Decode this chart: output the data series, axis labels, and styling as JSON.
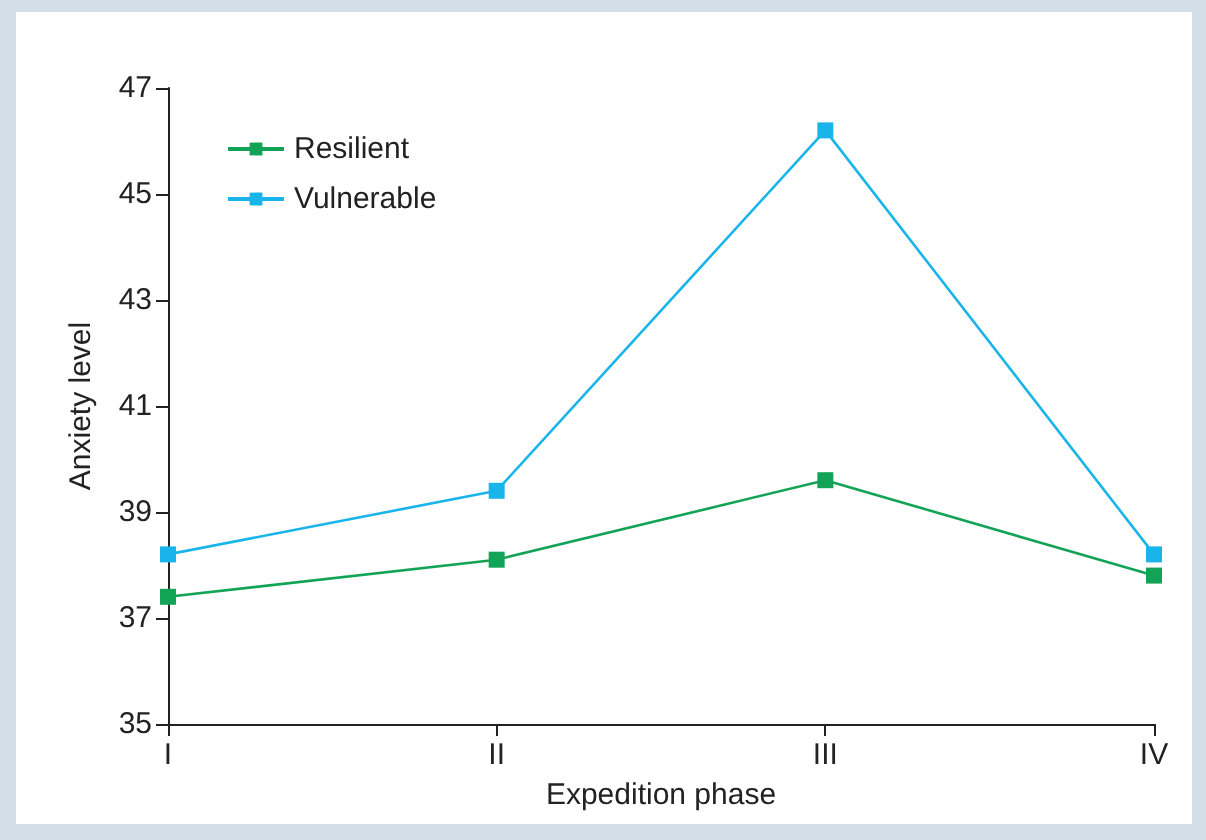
{
  "chart_data": {
    "type": "line",
    "xlabel": "Expedition phase",
    "ylabel": "Anxiety level",
    "categories": [
      "I",
      "II",
      "III",
      "IV"
    ],
    "series": [
      {
        "name": "Resilient",
        "color": "#13a356",
        "values": [
          37.4,
          38.1,
          39.6,
          37.8
        ]
      },
      {
        "name": "Vulnerable",
        "color": "#19b5ea",
        "values": [
          38.2,
          39.4,
          46.2,
          38.2
        ]
      }
    ],
    "ylim": [
      35,
      47
    ],
    "yticks": [
      35,
      37,
      39,
      41,
      43,
      45,
      47
    ],
    "marker": "square",
    "legend": "top left",
    "grid": false
  }
}
